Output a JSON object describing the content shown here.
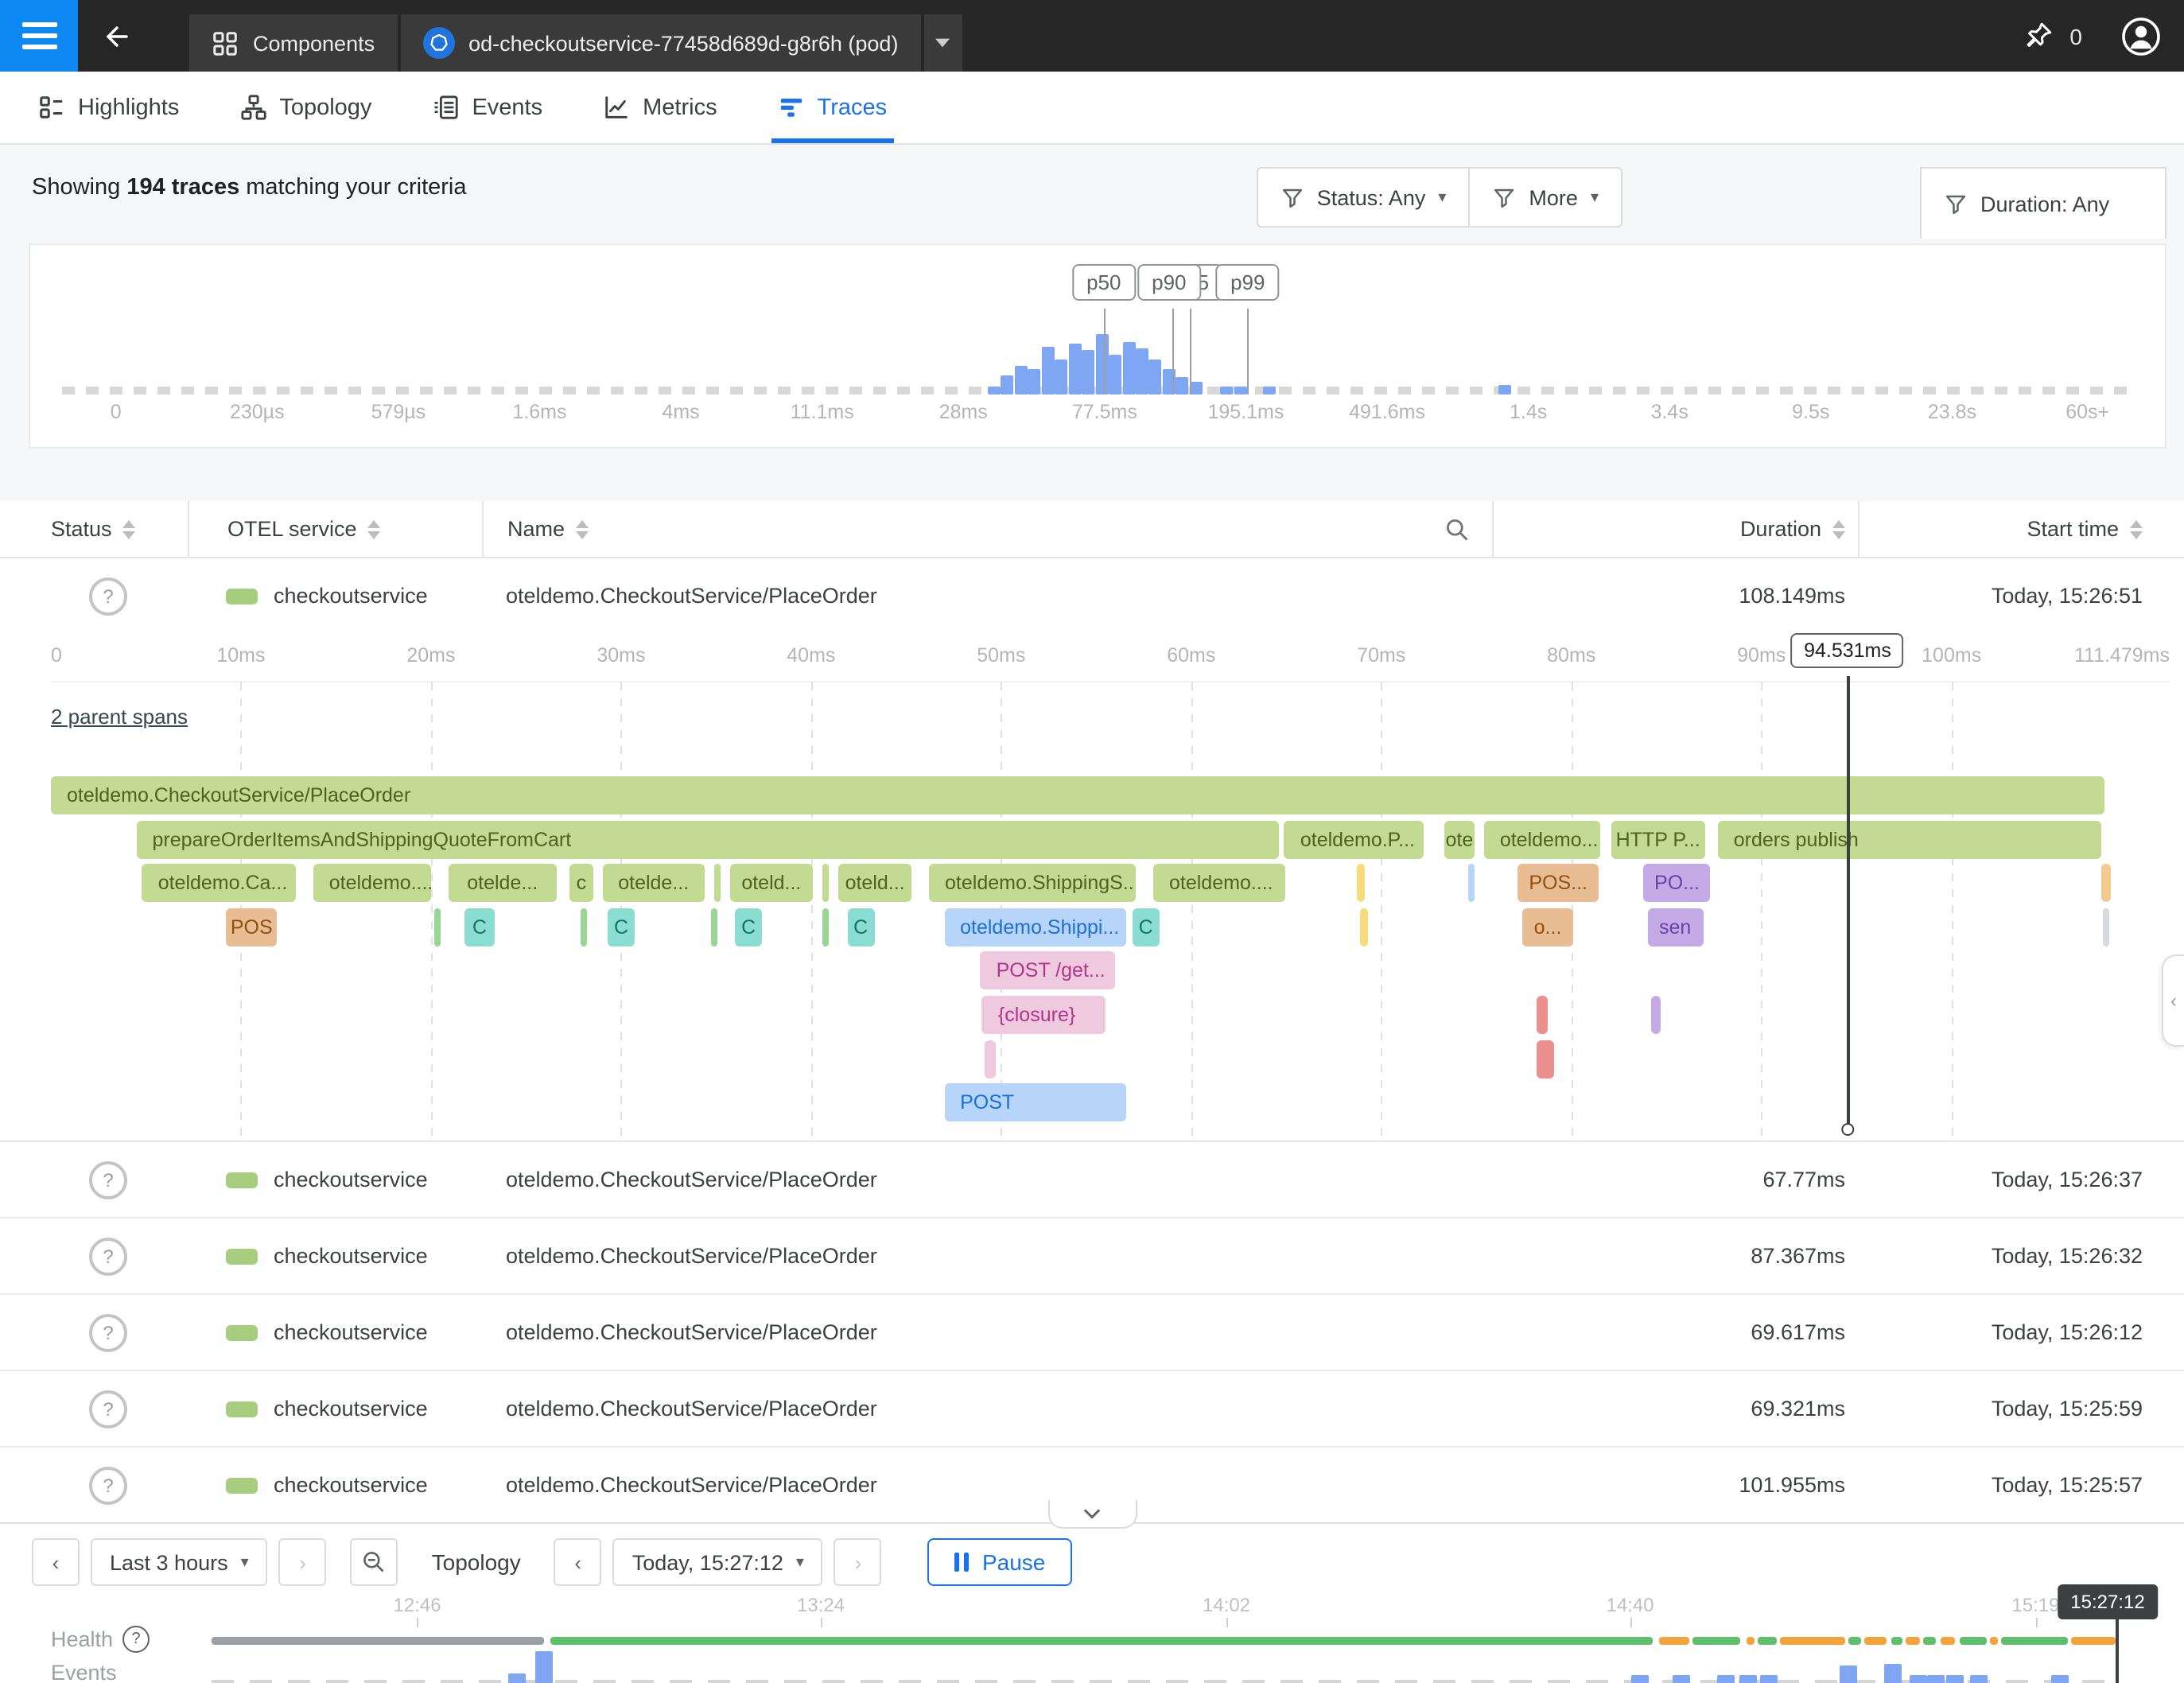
{
  "topbar": {
    "components_tab": "Components",
    "entity_tab": "od-checkoutservice-77458d689d-g8r6h (pod)",
    "pin_count": "0"
  },
  "nav_tabs": [
    {
      "id": "highlights",
      "label": "Highlights",
      "icon": "highlights-icon",
      "active": false
    },
    {
      "id": "topology",
      "label": "Topology",
      "icon": "topology-icon",
      "active": false
    },
    {
      "id": "events",
      "label": "Events",
      "icon": "events-icon",
      "active": false
    },
    {
      "id": "metrics",
      "label": "Metrics",
      "icon": "metrics-icon",
      "active": false
    },
    {
      "id": "traces",
      "label": "Traces",
      "icon": "traces-icon",
      "active": true
    }
  ],
  "toolbar": {
    "summary_prefix": "Showing ",
    "summary_bold": "194 traces",
    "summary_suffix": " matching your criteria",
    "status_filter": "Status: Any",
    "more_filter": "More",
    "duration_filter": "Duration: Any"
  },
  "histogram": {
    "type": "histogram",
    "bar_color": "#7ea6f3",
    "axis_labels": [
      {
        "label": "0",
        "f": 0.026
      },
      {
        "label": "230µs",
        "f": 0.0942
      },
      {
        "label": "579µs",
        "f": 0.1624
      },
      {
        "label": "1.6ms",
        "f": 0.2306
      },
      {
        "label": "4ms",
        "f": 0.2988
      },
      {
        "label": "11.1ms",
        "f": 0.367
      },
      {
        "label": "28ms",
        "f": 0.4352
      },
      {
        "label": "77.5ms",
        "f": 0.5034
      },
      {
        "label": "195.1ms",
        "f": 0.5716
      },
      {
        "label": "491.6ms",
        "f": 0.6398
      },
      {
        "label": "1.4s",
        "f": 0.708
      },
      {
        "label": "3.4s",
        "f": 0.7762
      },
      {
        "label": "9.5s",
        "f": 0.8444
      },
      {
        "label": "23.8s",
        "f": 0.9126
      },
      {
        "label": "60s+",
        "f": 0.978
      }
    ],
    "percentiles": [
      {
        "label": "p50",
        "f": 0.503,
        "line_f": 0.503,
        "z": 2
      },
      {
        "label": "p95",
        "f": 0.5455,
        "line_f": 0.5445,
        "z": 1
      },
      {
        "label": "p90",
        "f": 0.5345,
        "line_f": 0.536,
        "z": 2
      },
      {
        "label": "p99",
        "f": 0.5725,
        "line_f": 0.5725,
        "z": 2
      }
    ],
    "bars": [
      {
        "f": 0.45,
        "h": 5
      },
      {
        "f": 0.4565,
        "h": 12
      },
      {
        "f": 0.463,
        "h": 18
      },
      {
        "f": 0.4695,
        "h": 16
      },
      {
        "f": 0.476,
        "h": 30
      },
      {
        "f": 0.4825,
        "h": 22
      },
      {
        "f": 0.489,
        "h": 32
      },
      {
        "f": 0.4955,
        "h": 28
      },
      {
        "f": 0.502,
        "h": 38
      },
      {
        "f": 0.5085,
        "h": 25
      },
      {
        "f": 0.515,
        "h": 33
      },
      {
        "f": 0.5215,
        "h": 29
      },
      {
        "f": 0.528,
        "h": 22
      },
      {
        "f": 0.5345,
        "h": 16
      },
      {
        "f": 0.541,
        "h": 11
      },
      {
        "f": 0.5475,
        "h": 8
      },
      {
        "f": 0.562,
        "h": 5
      },
      {
        "f": 0.569,
        "h": 5
      },
      {
        "f": 0.583,
        "h": 5
      },
      {
        "f": 0.697,
        "h": 6
      }
    ]
  },
  "table": {
    "headers": {
      "status": "Status",
      "service": "OTEL service",
      "name": "Name",
      "duration": "Duration",
      "start": "Start time"
    },
    "expanded_row": {
      "service": "checkoutservice",
      "name": "oteldemo.CheckoutService/PlaceOrder",
      "duration": "108.149ms",
      "start": "Today, 15:26:51"
    },
    "rows": [
      {
        "service": "checkoutservice",
        "name": "oteldemo.CheckoutService/PlaceOrder",
        "duration": "67.77ms",
        "start": "Today, 15:26:37"
      },
      {
        "service": "checkoutservice",
        "name": "oteldemo.CheckoutService/PlaceOrder",
        "duration": "87.367ms",
        "start": "Today, 15:26:32"
      },
      {
        "service": "checkoutservice",
        "name": "oteldemo.CheckoutService/PlaceOrder",
        "duration": "69.617ms",
        "start": "Today, 15:26:12"
      },
      {
        "service": "checkoutservice",
        "name": "oteldemo.CheckoutService/PlaceOrder",
        "duration": "69.321ms",
        "start": "Today, 15:25:59"
      },
      {
        "service": "checkoutservice",
        "name": "oteldemo.CheckoutService/PlaceOrder",
        "duration": "101.955ms",
        "start": "Today, 15:25:57"
      }
    ]
  },
  "waterfall": {
    "parent_link": "2 parent spans",
    "total_ms": 111.479,
    "ticks": [
      {
        "label": "0",
        "t": 0
      },
      {
        "label": "10ms",
        "t": 10
      },
      {
        "label": "20ms",
        "t": 20
      },
      {
        "label": "30ms",
        "t": 30
      },
      {
        "label": "40ms",
        "t": 40
      },
      {
        "label": "50ms",
        "t": 50
      },
      {
        "label": "60ms",
        "t": 60
      },
      {
        "label": "70ms",
        "t": 70
      },
      {
        "label": "80ms",
        "t": 80
      },
      {
        "label": "90ms",
        "t": 90
      },
      {
        "label": "100ms",
        "t": 100
      },
      {
        "label": "111.479ms",
        "t": 111.479
      }
    ],
    "marker": {
      "label": "94.531ms",
      "t": 94.531
    },
    "span_colors": {
      "green": {
        "bg": "#c3da93",
        "fg": "#4b6320"
      },
      "greenlite": {
        "bg": "#99d596",
        "fg": "#2e7d32"
      },
      "teal": {
        "bg": "#8bdcd1",
        "fg": "#0e7569"
      },
      "tan": {
        "bg": "#e9bd94",
        "fg": "#8f5012"
      },
      "tanlight": {
        "bg": "#f3c98e",
        "fg": "#8f5012"
      },
      "yellow": {
        "bg": "#f6dc7a",
        "fg": "#8a6d00"
      },
      "lblue": {
        "bg": "#b7d5f8",
        "fg": "#1c6fdc"
      },
      "pink": {
        "bg": "#efc9de",
        "fg": "#b23588"
      },
      "purple": {
        "bg": "#c4abe5",
        "fg": "#6c3fa9"
      },
      "salmon": {
        "bg": "#ec8f8f",
        "fg": "#8e2323"
      },
      "gray": {
        "bg": "#d7dbe0",
        "fg": "#555555"
      }
    },
    "rows": [
      [
        {
          "t0": 0,
          "t1": 108.15,
          "c": "green",
          "label": "oteldemo.CheckoutService/PlaceOrder"
        }
      ],
      [
        {
          "t0": 4.5,
          "t1": 64.7,
          "c": "green",
          "label": "prepareOrderItemsAndShippingQuoteFromCart"
        },
        {
          "t0": 64.9,
          "t1": 72.3,
          "c": "green",
          "label": "oteldemo.P..."
        },
        {
          "t0": 73.3,
          "t1": 75.0,
          "c": "green",
          "label": "ote"
        },
        {
          "t0": 75.4,
          "t1": 81.6,
          "c": "green",
          "label": "oteldemo...."
        },
        {
          "t0": 82.1,
          "t1": 87.1,
          "c": "green",
          "label": "HTTP P..."
        },
        {
          "t0": 87.7,
          "t1": 108.0,
          "c": "green",
          "label": "orders publish"
        }
      ],
      [
        {
          "t0": 4.8,
          "t1": 13.0,
          "c": "green",
          "label": "oteldemo.Ca..."
        },
        {
          "t0": 13.8,
          "t1": 20.1,
          "c": "green",
          "label": "oteldemo...."
        },
        {
          "t0": 20.9,
          "t1": 26.7,
          "c": "green",
          "label": "otelde..."
        },
        {
          "t0": 27.3,
          "t1": 28.6,
          "c": "green",
          "label": "c"
        },
        {
          "t0": 29.0,
          "t1": 34.5,
          "c": "green",
          "label": "otelde..."
        },
        {
          "t0": 34.9,
          "t1": 35.3,
          "c": "green",
          "label": ""
        },
        {
          "t0": 35.7,
          "t1": 40.2,
          "c": "green",
          "label": "oteld..."
        },
        {
          "t0": 40.6,
          "t1": 41.0,
          "c": "green",
          "label": ""
        },
        {
          "t0": 41.4,
          "t1": 45.4,
          "c": "green",
          "label": "oteld..."
        },
        {
          "t0": 46.2,
          "t1": 57.2,
          "c": "green",
          "label": "oteldemo.ShippingS..."
        },
        {
          "t0": 58.0,
          "t1": 65.0,
          "c": "green",
          "label": "oteldemo...."
        },
        {
          "t0": 68.7,
          "t1": 69.2,
          "c": "yellow",
          "label": ""
        },
        {
          "t0": 74.6,
          "t1": 75.0,
          "c": "lblue",
          "label": ""
        },
        {
          "t0": 77.2,
          "t1": 81.5,
          "c": "tan",
          "label": "POS..."
        },
        {
          "t0": 83.8,
          "t1": 87.4,
          "c": "purple",
          "label": "PO..."
        },
        {
          "t0": 107.9,
          "t1": 108.5,
          "c": "tanlight",
          "label": ""
        }
      ],
      [
        {
          "t0": 9.2,
          "t1": 12.0,
          "c": "tan",
          "label": "POS"
        },
        {
          "t0": 20.2,
          "t1": 20.6,
          "c": "greenlite",
          "label": ""
        },
        {
          "t0": 21.8,
          "t1": 23.4,
          "c": "teal",
          "label": "C"
        },
        {
          "t0": 27.9,
          "t1": 28.3,
          "c": "greenlite",
          "label": ""
        },
        {
          "t0": 29.3,
          "t1": 30.8,
          "c": "teal",
          "label": "C"
        },
        {
          "t0": 34.7,
          "t1": 35.1,
          "c": "greenlite",
          "label": ""
        },
        {
          "t0": 36.0,
          "t1": 37.5,
          "c": "teal",
          "label": "C"
        },
        {
          "t0": 40.6,
          "t1": 41.0,
          "c": "greenlite",
          "label": ""
        },
        {
          "t0": 41.9,
          "t1": 43.4,
          "c": "teal",
          "label": "C"
        },
        {
          "t0": 47.0,
          "t1": 56.7,
          "c": "lblue",
          "label": "oteldemo.Shippi..."
        },
        {
          "t0": 56.9,
          "t1": 58.4,
          "c": "teal",
          "label": "C"
        },
        {
          "t0": 68.9,
          "t1": 69.4,
          "c": "yellow",
          "label": ""
        },
        {
          "t0": 77.4,
          "t1": 80.2,
          "c": "tan",
          "label": "o..."
        },
        {
          "t0": 84.0,
          "t1": 87.0,
          "c": "purple",
          "label": "sen"
        },
        {
          "t0": 108.0,
          "t1": 108.4,
          "c": "gray",
          "label": ""
        }
      ],
      [
        {
          "t0": 48.9,
          "t1": 56.1,
          "c": "pink",
          "label": "POST /get..."
        }
      ],
      [
        {
          "t0": 49.0,
          "t1": 55.6,
          "c": "pink",
          "label": "{closure}"
        },
        {
          "t0": 78.2,
          "t1": 78.8,
          "c": "salmon",
          "label": ""
        },
        {
          "t0": 84.2,
          "t1": 84.8,
          "c": "purple",
          "label": ""
        }
      ],
      [
        {
          "t0": 49.1,
          "t1": 49.8,
          "c": "pink",
          "label": ""
        },
        {
          "t0": 78.2,
          "t1": 79.2,
          "c": "salmon",
          "label": ""
        }
      ],
      [
        {
          "t0": 47.0,
          "t1": 56.7,
          "c": "lblue",
          "label": "POST"
        }
      ]
    ]
  },
  "footer": {
    "range_label": "Last 3 hours",
    "topology_label": "Topology",
    "time_label": "Today, 15:27:12",
    "pause_label": "Pause",
    "health_label": "Health",
    "events_label": "Events",
    "cursor_label": "15:27:12",
    "ticks": [
      {
        "label": "12:46",
        "f": 0.108
      },
      {
        "label": "13:24",
        "f": 0.32
      },
      {
        "label": "14:02",
        "f": 0.533
      },
      {
        "label": "14:40",
        "f": 0.745
      },
      {
        "label": "15:19",
        "f": 0.958
      }
    ],
    "health_colors": {
      "gray": "#9aa0a6",
      "green": "#5fbf6c",
      "orange": "#f2a33c"
    },
    "health_segments": [
      {
        "f0": 0.0,
        "f1": 0.175,
        "c": "gray"
      },
      {
        "f0": 0.178,
        "f1": 0.757,
        "c": "green"
      },
      {
        "f0": 0.76,
        "f1": 0.776,
        "c": "orange"
      },
      {
        "f0": 0.778,
        "f1": 0.803,
        "c": "green"
      },
      {
        "f0": 0.806,
        "f1": 0.81,
        "c": "orange"
      },
      {
        "f0": 0.812,
        "f1": 0.822,
        "c": "green"
      },
      {
        "f0": 0.824,
        "f1": 0.858,
        "c": "orange"
      },
      {
        "f0": 0.86,
        "f1": 0.866,
        "c": "green"
      },
      {
        "f0": 0.868,
        "f1": 0.88,
        "c": "orange"
      },
      {
        "f0": 0.882,
        "f1": 0.888,
        "c": "green"
      },
      {
        "f0": 0.89,
        "f1": 0.897,
        "c": "orange"
      },
      {
        "f0": 0.899,
        "f1": 0.906,
        "c": "green"
      },
      {
        "f0": 0.908,
        "f1": 0.916,
        "c": "orange"
      },
      {
        "f0": 0.918,
        "f1": 0.932,
        "c": "green"
      },
      {
        "f0": 0.934,
        "f1": 0.938,
        "c": "orange"
      },
      {
        "f0": 0.94,
        "f1": 0.975,
        "c": "green"
      },
      {
        "f0": 0.977,
        "f1": 1.0,
        "c": "orange"
      }
    ],
    "event_bars": [
      {
        "f": 0.16,
        "h": 8
      },
      {
        "f": 0.175,
        "h": 22
      },
      {
        "f": 0.75,
        "h": 7
      },
      {
        "f": 0.772,
        "h": 7
      },
      {
        "f": 0.795,
        "h": 7
      },
      {
        "f": 0.807,
        "h": 7
      },
      {
        "f": 0.818,
        "h": 7
      },
      {
        "f": 0.86,
        "h": 13
      },
      {
        "f": 0.883,
        "h": 14
      },
      {
        "f": 0.896,
        "h": 7
      },
      {
        "f": 0.906,
        "h": 7
      },
      {
        "f": 0.916,
        "h": 7
      },
      {
        "f": 0.928,
        "h": 7
      },
      {
        "f": 0.971,
        "h": 7
      }
    ]
  }
}
